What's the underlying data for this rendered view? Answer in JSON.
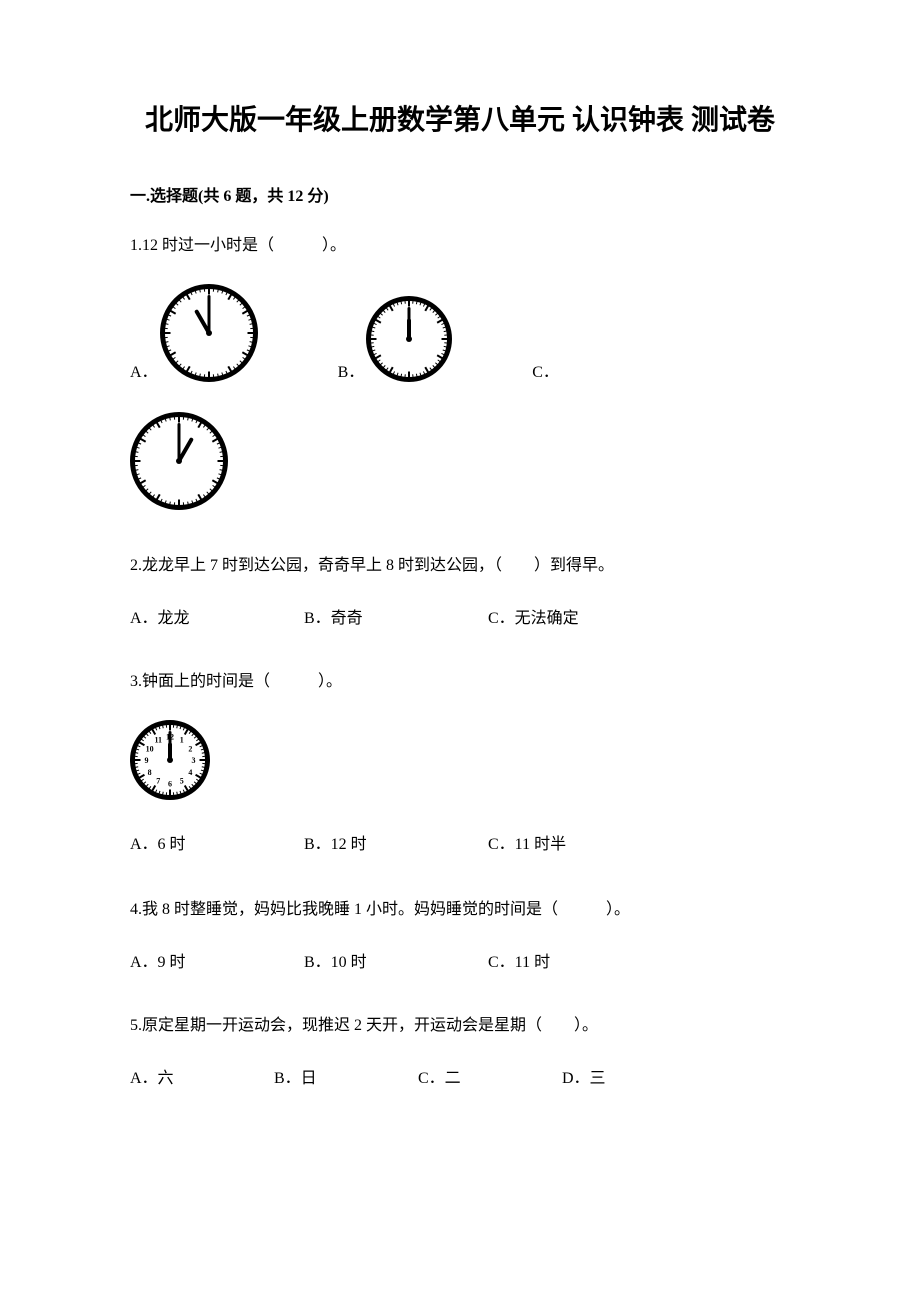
{
  "title": "北师大版一年级上册数学第八单元 认识钟表 测试卷",
  "section1": {
    "header": "一.选择题(共 6 题，共 12 分)",
    "q1": {
      "text": "1.12 时过一小时是（　　　）。",
      "choiceA_label": "A．",
      "choiceB_label": "B．",
      "choiceC_label": "C．",
      "clockA": {
        "hour": 11,
        "minute": 0,
        "size": 98,
        "stroke": "#000000",
        "tick_color": "#000000"
      },
      "clockB": {
        "hour": 12,
        "minute": 0,
        "size": 86,
        "stroke": "#000000",
        "tick_color": "#000000"
      },
      "clockC": {
        "hour": 1,
        "minute": 0,
        "size": 98,
        "stroke": "#000000",
        "tick_color": "#000000"
      }
    },
    "q2": {
      "text": "2.龙龙早上 7 时到达公园，奇奇早上 8 时到达公园，（　　）到得早。",
      "A": "A．龙龙",
      "B": "B．奇奇",
      "C": "C．无法确定"
    },
    "q3": {
      "text": "3.钟面上的时间是（　　　）。",
      "clock": {
        "hour": 12,
        "minute": 0,
        "size": 80,
        "stroke": "#000000",
        "tick_color": "#000000",
        "show_numbers": true
      },
      "A": "A．6 时",
      "B": "B．12 时",
      "C": "C．11 时半"
    },
    "q4": {
      "text": "4.我 8 时整睡觉，妈妈比我晚睡 1 小时。妈妈睡觉的时间是（　　　）。",
      "A": "A．9 时",
      "B": "B．10 时",
      "C": "C．11 时"
    },
    "q5": {
      "text": "5.原定星期一开运动会，现推迟 2 天开，开运动会是星期（　　）。",
      "A": "A．六",
      "B": "B．日",
      "C": "C．二",
      "D": "D．三"
    }
  },
  "clock_style": {
    "face_fill": "#ffffff",
    "outline_width": 5,
    "hour_hand_width": 4,
    "minute_hand_width": 3,
    "number_fontsize": 8
  }
}
